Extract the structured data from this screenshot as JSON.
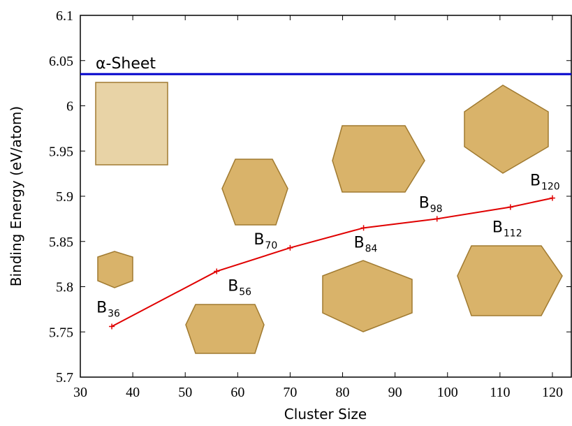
{
  "chart_data": {
    "type": "line",
    "xlabel": "Cluster Size",
    "ylabel": "Binding Energy (eV/atom)",
    "x": [
      36,
      56,
      70,
      84,
      98,
      112,
      120
    ],
    "series": [
      {
        "name": null,
        "color": "#e00000",
        "values": [
          5.756,
          5.817,
          5.843,
          5.865,
          5.875,
          5.888,
          5.898
        ]
      }
    ],
    "point_labels": [
      {
        "base": "B",
        "sub": "36"
      },
      {
        "base": "B",
        "sub": "56"
      },
      {
        "base": "B",
        "sub": "70"
      },
      {
        "base": "B",
        "sub": "84"
      },
      {
        "base": "B",
        "sub": "98"
      },
      {
        "base": "B",
        "sub": "112"
      },
      {
        "base": "B",
        "sub": "120"
      }
    ],
    "reference_lines": [
      {
        "label": "α-Sheet",
        "value": 6.035,
        "color": "#0000cc"
      }
    ],
    "xlim": [
      30,
      123.6
    ],
    "xticks": [
      30,
      40,
      50,
      60,
      70,
      80,
      90,
      100,
      110,
      120
    ],
    "ylim": [
      5.7,
      6.1
    ],
    "yticks": [
      5.7,
      5.75,
      5.8,
      5.85,
      5.9,
      5.95,
      6,
      6.05,
      6.1
    ],
    "grid": false
  }
}
